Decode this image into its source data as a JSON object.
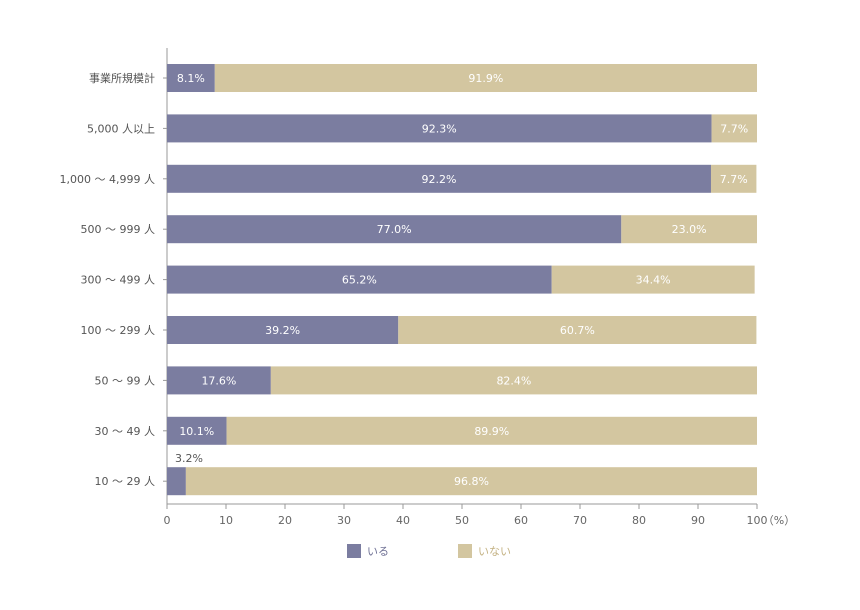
{
  "chart_data": {
    "type": "bar",
    "orientation": "horizontal",
    "stacked": true,
    "categories": [
      "事業所規模計",
      "5,000 人以上",
      "1,000 ～ 4,999 人",
      "500 ～ 999 人",
      "300 ～ 499 人",
      "100 ～ 299 人",
      "50 ～ 99 人",
      "30 ～ 49 人",
      "10 ～ 29 人"
    ],
    "series": [
      {
        "name": "いる",
        "color": "#7b7da0",
        "values": [
          8.1,
          92.3,
          92.2,
          77.0,
          65.2,
          39.2,
          17.6,
          10.1,
          3.2
        ],
        "labels": [
          "8.1%",
          "92.3%",
          "92.2%",
          "77.0%",
          "65.2%",
          "39.2%",
          "17.6%",
          "10.1%",
          "3.2%"
        ]
      },
      {
        "name": "いない",
        "color": "#d3c6a0",
        "values": [
          91.9,
          7.7,
          7.7,
          23.0,
          34.4,
          60.7,
          82.4,
          89.9,
          96.8
        ],
        "labels": [
          "91.9%",
          "7.7%",
          "7.7%",
          "23.0%",
          "34.4%",
          "60.7%",
          "82.4%",
          "89.9%",
          "96.8%"
        ]
      }
    ],
    "xlim": [
      0,
      100
    ],
    "xticks": [
      "0",
      "10",
      "20",
      "30",
      "40",
      "50",
      "60",
      "70",
      "80",
      "90",
      "100"
    ],
    "xunit": "（%）",
    "grid": false,
    "legend_position": "bottom"
  }
}
